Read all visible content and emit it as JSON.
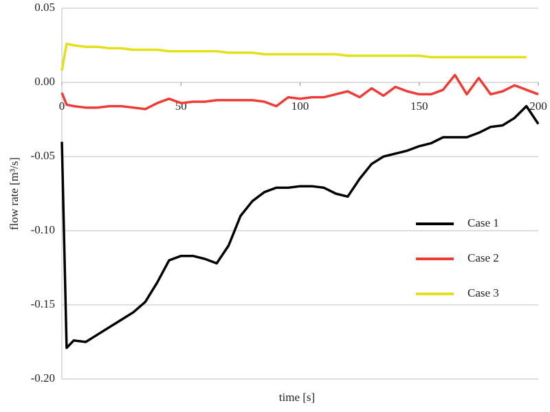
{
  "chart_data": {
    "type": "line",
    "x_label": "time [s]",
    "y_label": "flow rate [m³/s]",
    "xlim": [
      0,
      200
    ],
    "ylim": [
      -0.2,
      0.05
    ],
    "xticks": [
      0,
      50,
      100,
      150,
      200
    ],
    "yticks": [
      0.05,
      {
        "value": 0,
        "label": "0.00"
      },
      -0.05,
      {
        "value": -0.1,
        "label": "-0.10"
      },
      -0.15,
      {
        "value": -0.2,
        "label": "-0.20"
      }
    ],
    "grid": true,
    "legend": "right",
    "x": [
      0,
      2,
      5,
      10,
      15,
      20,
      25,
      30,
      35,
      40,
      45,
      50,
      55,
      60,
      65,
      70,
      75,
      80,
      85,
      90,
      95,
      100,
      105,
      110,
      115,
      120,
      125,
      130,
      135,
      140,
      145,
      150,
      155,
      160,
      165,
      170,
      175,
      180,
      185,
      190,
      195,
      200
    ],
    "series": [
      {
        "name": "Case 1",
        "color": "#000000",
        "values": [
          -0.04,
          -0.179,
          -0.174,
          -0.175,
          -0.17,
          -0.165,
          -0.16,
          -0.155,
          -0.148,
          -0.135,
          -0.12,
          -0.117,
          -0.117,
          -0.119,
          -0.122,
          -0.11,
          -0.09,
          -0.08,
          -0.074,
          -0.071,
          -0.071,
          -0.07,
          -0.07,
          -0.071,
          -0.075,
          -0.077,
          -0.065,
          -0.055,
          -0.05,
          -0.048,
          -0.046,
          -0.043,
          -0.041,
          -0.037,
          -0.037,
          -0.037,
          -0.034,
          -0.03,
          -0.029,
          -0.024,
          -0.016,
          -0.028
        ]
      },
      {
        "name": "Case 2",
        "color": "#ee3b36",
        "values": [
          -0.007,
          -0.015,
          -0.016,
          -0.017,
          -0.017,
          -0.016,
          -0.016,
          -0.017,
          -0.018,
          -0.014,
          -0.011,
          -0.014,
          -0.013,
          -0.013,
          -0.012,
          -0.012,
          -0.012,
          -0.012,
          -0.013,
          -0.016,
          -0.01,
          -0.011,
          -0.01,
          -0.01,
          -0.008,
          -0.006,
          -0.01,
          -0.004,
          -0.009,
          -0.003,
          -0.006,
          -0.008,
          -0.008,
          -0.005,
          0.005,
          -0.008,
          0.003,
          -0.008,
          -0.006,
          -0.002,
          -0.005,
          -0.008
        ]
      },
      {
        "name": "Case 3",
        "color": "#e3e01a",
        "values": [
          0.008,
          0.026,
          0.025,
          0.024,
          0.024,
          0.023,
          0.023,
          0.022,
          0.022,
          0.022,
          0.021,
          0.021,
          0.021,
          0.021,
          0.021,
          0.02,
          0.02,
          0.02,
          0.019,
          0.019,
          0.019,
          0.019,
          0.019,
          0.019,
          0.019,
          0.018,
          0.018,
          0.018,
          0.018,
          0.018,
          0.018,
          0.018,
          0.017,
          0.017,
          0.017,
          0.017,
          0.017,
          0.017,
          0.017,
          0.017,
          0.017,
          null
        ]
      }
    ]
  }
}
